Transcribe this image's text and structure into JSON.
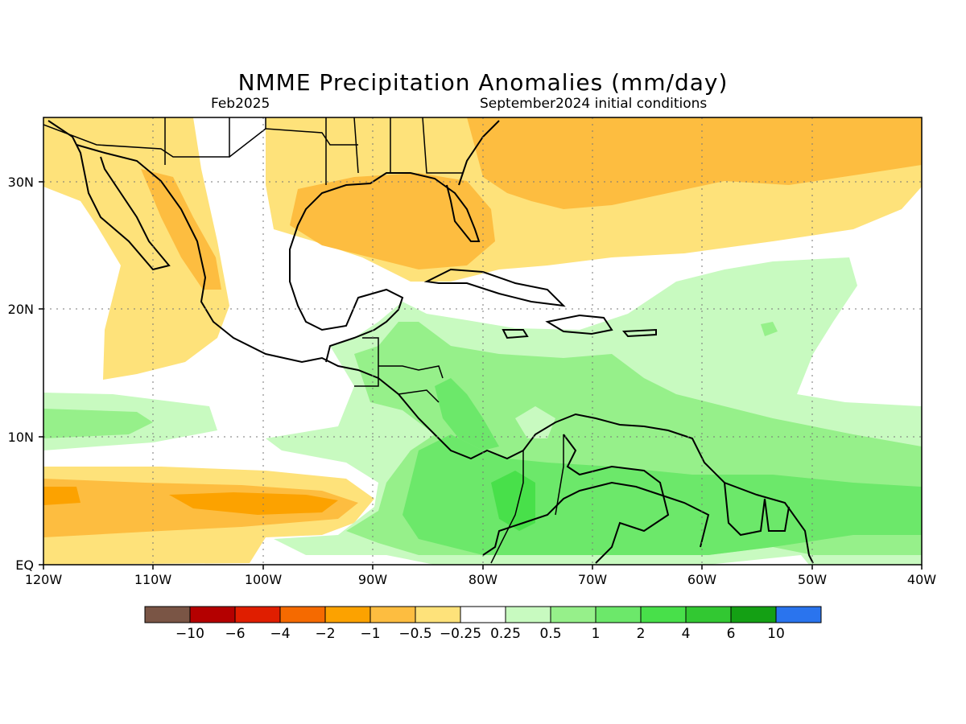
{
  "header": {
    "title": "NMME Precipitation Anomalies (mm/day)",
    "valid_month": "Feb2025",
    "initial_conditions": "September2024 initial conditions"
  },
  "map": {
    "region": "Central America / Caribbean",
    "lon_range": [
      -120,
      -40
    ],
    "lat_range": [
      0,
      35
    ],
    "x_ticks": [
      "120W",
      "110W",
      "100W",
      "90W",
      "80W",
      "70W",
      "60W",
      "50W",
      "40W"
    ],
    "y_ticks": [
      "EQ",
      "10N",
      "20N",
      "30N"
    ],
    "grid": "dotted"
  },
  "legend": {
    "colors": [
      "#7a5545",
      "#b40000",
      "#e01e00",
      "#f56a00",
      "#fca200",
      "#fdbd40",
      "#fee27a",
      "#ffffff",
      "#c8fac0",
      "#96f08a",
      "#6ce86a",
      "#48e04a",
      "#32c832",
      "#14a014",
      "#2a74ee"
    ],
    "labels": [
      "−10",
      "−6",
      "−4",
      "−2",
      "−1",
      "−0.5",
      "−0.25",
      "0.25",
      "0.5",
      "1",
      "2",
      "4",
      "6",
      "10"
    ]
  }
}
